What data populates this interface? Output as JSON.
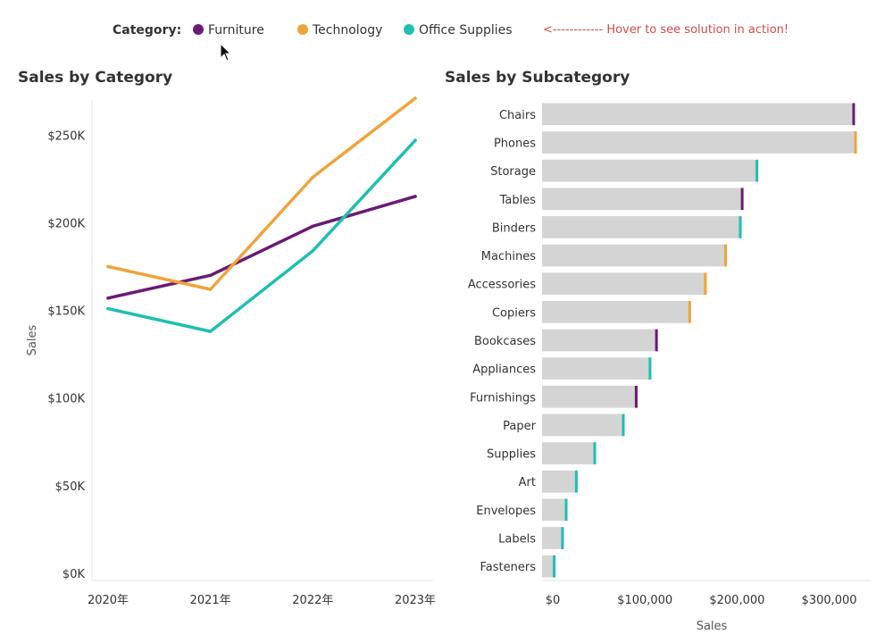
{
  "legend": {
    "title": "Category:",
    "items": [
      {
        "label": "Furniture",
        "color": "#6a1b72"
      },
      {
        "label": "Technology",
        "color": "#f0a43a"
      },
      {
        "label": "Office Supplies",
        "color": "#1fbfb0"
      }
    ],
    "hint": "<------------  Hover to see solution in action!"
  },
  "chart_data": [
    {
      "type": "line",
      "title": "Sales by Category",
      "xlabel": "",
      "ylabel": "Sales",
      "ylim": [
        0,
        270000
      ],
      "yticks": [
        0,
        50000,
        100000,
        150000,
        200000,
        250000
      ],
      "ytick_labels": [
        "$0K",
        "$50K",
        "$100K",
        "$150K",
        "$200K",
        "$250K"
      ],
      "categories": [
        "2020年",
        "2021年",
        "2022年",
        "2023年"
      ],
      "series": [
        {
          "name": "Furniture",
          "color": "#6a1b72",
          "values": [
            157000,
            170000,
            198000,
            215000
          ]
        },
        {
          "name": "Technology",
          "color": "#f0a43a",
          "values": [
            175000,
            162000,
            226000,
            271000
          ]
        },
        {
          "name": "Office Supplies",
          "color": "#1fbfb0",
          "values": [
            151000,
            138000,
            184000,
            247000
          ]
        }
      ]
    },
    {
      "type": "bar",
      "orientation": "horizontal",
      "title": "Sales by Subcategory",
      "xlabel": "Sales",
      "ylabel": "",
      "xlim": [
        0,
        345000
      ],
      "xticks": [
        0,
        100000,
        200000,
        300000
      ],
      "xtick_labels": [
        "$0",
        "$100,000",
        "$200,000",
        "$300,000"
      ],
      "bar_color": "#d4d4d4",
      "categories": [
        "Chairs",
        "Phones",
        "Storage",
        "Tables",
        "Binders",
        "Machines",
        "Accessories",
        "Copiers",
        "Bookcases",
        "Appliances",
        "Furnishings",
        "Paper",
        "Supplies",
        "Art",
        "Envelopes",
        "Labels",
        "Fasteners"
      ],
      "values": [
        328000,
        330000,
        223000,
        207000,
        205000,
        189000,
        167000,
        150000,
        114000,
        107000,
        92000,
        78000,
        47000,
        27000,
        16000,
        12000,
        3000
      ],
      "category_group": [
        "Furniture",
        "Technology",
        "Office Supplies",
        "Furniture",
        "Office Supplies",
        "Technology",
        "Technology",
        "Technology",
        "Furniture",
        "Office Supplies",
        "Furniture",
        "Office Supplies",
        "Office Supplies",
        "Office Supplies",
        "Office Supplies",
        "Office Supplies",
        "Office Supplies"
      ]
    }
  ]
}
